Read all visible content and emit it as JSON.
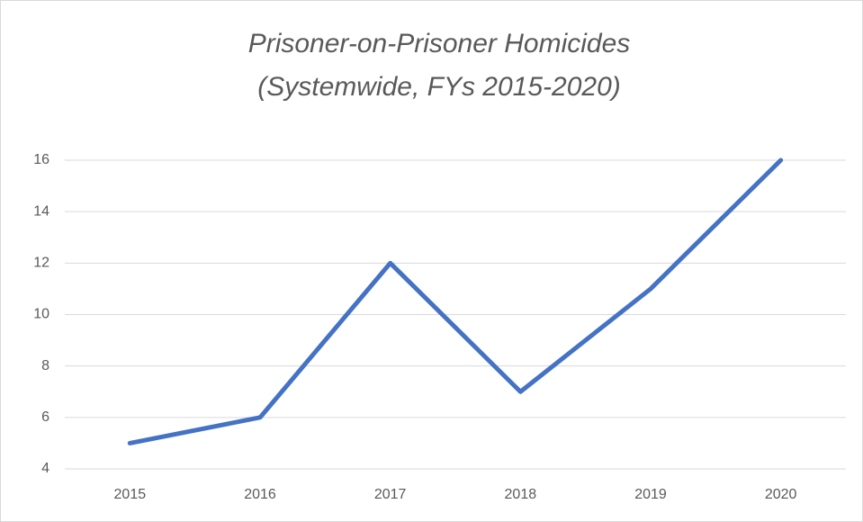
{
  "chart_data": {
    "type": "line",
    "title": [
      "Prisoner-on-Prisoner Homicides",
      "(Systemwide, FYs 2015-2020)"
    ],
    "categories": [
      "2015",
      "2016",
      "2017",
      "2018",
      "2019",
      "2020"
    ],
    "series": [
      {
        "name": "Homicides",
        "color": "#4472c4",
        "values": [
          5,
          6,
          12,
          7,
          11,
          16
        ]
      }
    ],
    "ylim": [
      4,
      16
    ],
    "yticks": [
      4,
      6,
      8,
      10,
      12,
      14,
      16
    ],
    "grid": true
  }
}
